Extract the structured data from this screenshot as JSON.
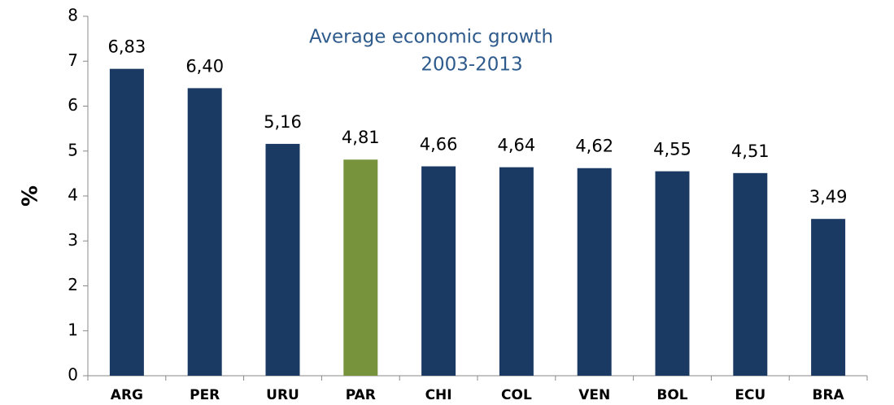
{
  "chart_data": {
    "type": "bar",
    "title": [
      "Average economic growth",
      "2003-2013"
    ],
    "y_label": "%",
    "categories": [
      "ARG",
      "PER",
      "URU",
      "PAR",
      "CHI",
      "COL",
      "VEN",
      "BOL",
      "ECU",
      "BRA"
    ],
    "values": [
      6.83,
      6.4,
      5.16,
      4.81,
      4.66,
      4.64,
      4.62,
      4.55,
      4.51,
      3.49
    ],
    "value_labels": [
      "6,83",
      "6,40",
      "5,16",
      "4,81",
      "4,66",
      "4,64",
      "4,62",
      "4,55",
      "4,51",
      "3,49"
    ],
    "colors": [
      "#1b3a63",
      "#1b3a63",
      "#1b3a63",
      "#77933c",
      "#1b3a63",
      "#1b3a63",
      "#1b3a63",
      "#1b3a63",
      "#1b3a63",
      "#1b3a63"
    ],
    "ylim": [
      0,
      8
    ],
    "yticks": [
      0,
      1,
      2,
      3,
      4,
      5,
      6,
      7,
      8
    ],
    "grid": false
  }
}
